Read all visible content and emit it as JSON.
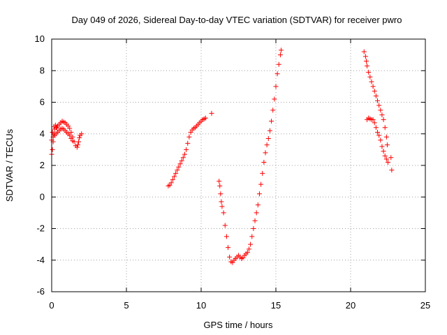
{
  "chart_data": {
    "type": "scatter",
    "title": "Day 049 of 2026, Sidereal Day-to-day VTEC variation (SDTVAR) for receiver pwro",
    "xlabel": "GPS time / hours",
    "ylabel": "SDTVAR / TECUs",
    "xlim": [
      0,
      25
    ],
    "ylim": [
      -6,
      10
    ],
    "x_ticks": [
      0,
      5,
      10,
      15,
      20,
      25
    ],
    "y_ticks": [
      -6,
      -4,
      -2,
      0,
      2,
      4,
      6,
      8,
      10
    ],
    "x_tick_labels": [
      "0",
      "5",
      "10",
      "15",
      "20",
      "25"
    ],
    "y_tick_labels": [
      "-6",
      "-4",
      "-2",
      "0",
      "2",
      "4",
      "6",
      "8",
      "10"
    ],
    "grid": true,
    "marker": "+",
    "color": "#ff0000",
    "series": [
      {
        "name": "pwro",
        "points": [
          [
            0.0,
            2.7
          ],
          [
            0.05,
            3.0
          ],
          [
            0.1,
            3.5
          ],
          [
            0.15,
            4.0
          ],
          [
            0.2,
            4.3
          ],
          [
            0.3,
            4.4
          ],
          [
            0.4,
            4.5
          ],
          [
            0.5,
            4.6
          ],
          [
            0.6,
            4.7
          ],
          [
            0.7,
            4.8
          ],
          [
            0.8,
            4.75
          ],
          [
            0.9,
            4.7
          ],
          [
            1.0,
            4.6
          ],
          [
            1.1,
            4.5
          ],
          [
            1.2,
            4.35
          ],
          [
            1.3,
            4.1
          ],
          [
            1.4,
            3.8
          ],
          [
            1.5,
            3.5
          ],
          [
            1.6,
            3.25
          ],
          [
            1.7,
            3.15
          ],
          [
            1.75,
            3.3
          ],
          [
            1.8,
            3.5
          ],
          [
            1.85,
            3.75
          ],
          [
            1.9,
            3.9
          ],
          [
            2.0,
            4.0
          ],
          [
            0.0,
            3.6
          ],
          [
            0.1,
            3.8
          ],
          [
            0.2,
            3.9
          ],
          [
            0.3,
            4.0
          ],
          [
            0.4,
            4.1
          ],
          [
            0.5,
            4.2
          ],
          [
            0.6,
            4.3
          ],
          [
            0.7,
            4.35
          ],
          [
            0.8,
            4.3
          ],
          [
            0.9,
            4.2
          ],
          [
            1.0,
            4.1
          ],
          [
            1.1,
            4.0
          ],
          [
            1.2,
            3.9
          ],
          [
            1.3,
            3.7
          ],
          [
            1.4,
            3.55
          ],
          [
            0.05,
            4.1
          ],
          [
            0.15,
            4.45
          ],
          [
            0.25,
            4.55
          ],
          [
            0.35,
            4.4
          ],
          [
            7.8,
            0.7
          ],
          [
            7.9,
            0.75
          ],
          [
            8.0,
            0.9
          ],
          [
            8.1,
            1.1
          ],
          [
            8.2,
            1.3
          ],
          [
            8.3,
            1.5
          ],
          [
            8.4,
            1.7
          ],
          [
            8.5,
            1.9
          ],
          [
            8.6,
            2.1
          ],
          [
            8.7,
            2.3
          ],
          [
            8.8,
            2.5
          ],
          [
            8.9,
            2.7
          ],
          [
            9.0,
            3.0
          ],
          [
            9.1,
            3.4
          ],
          [
            9.2,
            3.8
          ],
          [
            9.3,
            4.1
          ],
          [
            9.4,
            4.25
          ],
          [
            9.5,
            4.35
          ],
          [
            9.6,
            4.4
          ],
          [
            9.7,
            4.5
          ],
          [
            9.8,
            4.6
          ],
          [
            9.9,
            4.7
          ],
          [
            10.0,
            4.8
          ],
          [
            10.1,
            4.9
          ],
          [
            10.2,
            4.95
          ],
          [
            10.3,
            5.0
          ],
          [
            10.7,
            5.3
          ],
          [
            11.2,
            1.0
          ],
          [
            11.25,
            0.7
          ],
          [
            11.3,
            0.2
          ],
          [
            11.35,
            -0.3
          ],
          [
            11.4,
            -0.6
          ],
          [
            11.5,
            -1.0
          ],
          [
            11.6,
            -1.8
          ],
          [
            11.7,
            -2.5
          ],
          [
            11.8,
            -3.2
          ],
          [
            11.9,
            -3.8
          ],
          [
            12.0,
            -4.1
          ],
          [
            12.1,
            -4.15
          ],
          [
            12.2,
            -4.0
          ],
          [
            12.3,
            -3.9
          ],
          [
            12.4,
            -3.8
          ],
          [
            12.5,
            -3.7
          ],
          [
            12.6,
            -3.8
          ],
          [
            12.7,
            -3.9
          ],
          [
            12.8,
            -3.85
          ],
          [
            12.9,
            -3.7
          ],
          [
            13.0,
            -3.6
          ],
          [
            13.1,
            -3.5
          ],
          [
            13.2,
            -3.3
          ],
          [
            13.3,
            -3.0
          ],
          [
            13.4,
            -2.5
          ],
          [
            13.5,
            -2.0
          ],
          [
            13.6,
            -1.5
          ],
          [
            13.7,
            -1.0
          ],
          [
            13.8,
            -0.5
          ],
          [
            13.9,
            0.2
          ],
          [
            14.0,
            0.8
          ],
          [
            14.1,
            1.5
          ],
          [
            14.2,
            2.2
          ],
          [
            14.3,
            2.8
          ],
          [
            14.4,
            3.3
          ],
          [
            14.5,
            3.7
          ],
          [
            14.6,
            4.2
          ],
          [
            14.7,
            4.8
          ],
          [
            14.8,
            5.5
          ],
          [
            14.9,
            6.2
          ],
          [
            15.0,
            7.0
          ],
          [
            15.1,
            7.8
          ],
          [
            15.2,
            8.4
          ],
          [
            15.3,
            9.0
          ],
          [
            15.35,
            9.3
          ],
          [
            20.9,
            9.2
          ],
          [
            21.0,
            8.9
          ],
          [
            21.05,
            8.6
          ],
          [
            21.1,
            8.3
          ],
          [
            21.2,
            7.9
          ],
          [
            21.3,
            7.6
          ],
          [
            21.4,
            7.3
          ],
          [
            21.5,
            7.0
          ],
          [
            21.6,
            6.7
          ],
          [
            21.7,
            6.4
          ],
          [
            21.8,
            6.1
          ],
          [
            21.9,
            5.8
          ],
          [
            22.0,
            5.5
          ],
          [
            22.1,
            5.2
          ],
          [
            22.2,
            4.9
          ],
          [
            22.3,
            4.4
          ],
          [
            22.4,
            3.8
          ],
          [
            22.45,
            3.3
          ],
          [
            21.1,
            4.9
          ],
          [
            21.2,
            5.0
          ],
          [
            21.3,
            4.95
          ],
          [
            21.4,
            4.9
          ],
          [
            21.5,
            4.9
          ],
          [
            21.6,
            4.7
          ],
          [
            21.7,
            4.4
          ],
          [
            21.8,
            4.1
          ],
          [
            21.9,
            3.9
          ],
          [
            22.0,
            3.6
          ],
          [
            22.1,
            3.2
          ],
          [
            22.2,
            2.9
          ],
          [
            22.3,
            2.6
          ],
          [
            22.4,
            2.4
          ],
          [
            22.5,
            2.2
          ],
          [
            22.7,
            2.5
          ],
          [
            22.75,
            1.7
          ]
        ]
      }
    ]
  }
}
